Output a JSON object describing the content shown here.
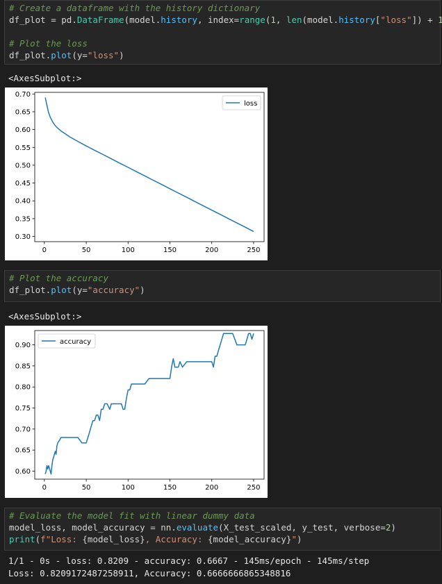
{
  "cells": [
    {
      "lines": [
        [
          {
            "t": "# Create a dataframe with the history dictionary",
            "c": "cm"
          }
        ],
        [
          {
            "t": "df_plot = pd.",
            "c": "op"
          },
          {
            "t": "DataFrame",
            "c": "bi"
          },
          {
            "t": "(model.",
            "c": "op"
          },
          {
            "t": "history",
            "c": "fn"
          },
          {
            "t": ", index=",
            "c": "op"
          },
          {
            "t": "range",
            "c": "bi"
          },
          {
            "t": "(",
            "c": "op"
          },
          {
            "t": "1",
            "c": "num"
          },
          {
            "t": ", ",
            "c": "op"
          },
          {
            "t": "len",
            "c": "bi"
          },
          {
            "t": "(model.",
            "c": "op"
          },
          {
            "t": "history",
            "c": "fn"
          },
          {
            "t": "[",
            "c": "op"
          },
          {
            "t": "\"loss\"",
            "c": "str"
          },
          {
            "t": "]) + ",
            "c": "op"
          },
          {
            "t": "1",
            "c": "num"
          },
          {
            "t": "))",
            "c": "op"
          }
        ],
        [
          {
            "t": "",
            "c": "op"
          }
        ],
        [
          {
            "t": "# Plot the loss",
            "c": "cm"
          }
        ],
        [
          {
            "t": "df_plot.",
            "c": "op"
          },
          {
            "t": "plot",
            "c": "fn"
          },
          {
            "t": "(y=",
            "c": "op"
          },
          {
            "t": "\"loss\"",
            "c": "str"
          },
          {
            "t": ")",
            "c": "op"
          }
        ]
      ]
    },
    {
      "lines": [
        [
          {
            "t": "# Plot the accuracy",
            "c": "cm"
          }
        ],
        [
          {
            "t": "df_plot.",
            "c": "op"
          },
          {
            "t": "plot",
            "c": "fn"
          },
          {
            "t": "(y=",
            "c": "op"
          },
          {
            "t": "\"accuracy\"",
            "c": "str"
          },
          {
            "t": ")",
            "c": "op"
          }
        ]
      ]
    },
    {
      "lines": [
        [
          {
            "t": "# Evaluate the model fit with linear dummy data",
            "c": "cm"
          }
        ],
        [
          {
            "t": "model_loss, model_accuracy = nn.",
            "c": "op"
          },
          {
            "t": "evaluate",
            "c": "fn"
          },
          {
            "t": "(X_test_scaled, y_test, verbose=",
            "c": "op"
          },
          {
            "t": "2",
            "c": "num"
          },
          {
            "t": ")",
            "c": "op"
          }
        ],
        [
          {
            "t": "print",
            "c": "bi"
          },
          {
            "t": "(",
            "c": "op"
          },
          {
            "t": "f\"Loss: ",
            "c": "str"
          },
          {
            "t": "{model_loss}",
            "c": "op"
          },
          {
            "t": ", Accuracy: ",
            "c": "str"
          },
          {
            "t": "{model_accuracy}",
            "c": "op"
          },
          {
            "t": "\"",
            "c": "str"
          },
          {
            "t": ")",
            "c": "op"
          }
        ]
      ]
    }
  ],
  "outputs": {
    "axes1": "<AxesSubplot:>",
    "axes2": "<AxesSubplot:>",
    "eval_line1": "1/1 - 0s - loss: 0.8209 - accuracy: 0.6667 - 145ms/epoch - 145ms/step",
    "eval_line2": "Loss: 0.8209172487258911, Accuracy: 0.6666666865348816"
  },
  "chart_data": [
    {
      "type": "line",
      "legend": "loss",
      "legend_position": "top-right",
      "grid": false,
      "xlim": [
        -11.5,
        262.5
      ],
      "ylim": [
        0.2855,
        0.7045
      ],
      "xticks": [
        0,
        50,
        100,
        150,
        200,
        250
      ],
      "yticks": [
        0.3,
        0.35,
        0.4,
        0.45,
        0.5,
        0.55,
        0.6,
        0.65,
        0.7
      ],
      "ytick_labels": [
        "0.30",
        "0.35",
        "0.40",
        "0.45",
        "0.50",
        "0.55",
        "0.60",
        "0.65",
        "0.70"
      ],
      "color": "#1f77b4",
      "series": [
        {
          "name": "loss",
          "x": [
            1,
            3,
            5,
            7,
            10,
            13,
            16,
            20,
            25,
            30,
            40,
            50,
            60,
            70,
            80,
            90,
            100,
            110,
            120,
            130,
            140,
            150,
            160,
            170,
            180,
            190,
            200,
            210,
            220,
            230,
            240,
            250
          ],
          "values": [
            0.69,
            0.668,
            0.648,
            0.635,
            0.621,
            0.611,
            0.604,
            0.596,
            0.588,
            0.58,
            0.567,
            0.554,
            0.542,
            0.53,
            0.518,
            0.506,
            0.494,
            0.482,
            0.47,
            0.458,
            0.446,
            0.434,
            0.422,
            0.41,
            0.398,
            0.386,
            0.374,
            0.362,
            0.35,
            0.338,
            0.326,
            0.314
          ]
        }
      ]
    },
    {
      "type": "line",
      "legend": "accuracy",
      "legend_position": "top-left",
      "grid": false,
      "xlim": [
        -11.5,
        262.5
      ],
      "ylim": [
        0.581,
        0.934
      ],
      "xticks": [
        0,
        50,
        100,
        150,
        200,
        250
      ],
      "yticks": [
        0.6,
        0.65,
        0.7,
        0.75,
        0.8,
        0.85,
        0.9
      ],
      "ytick_labels": [
        "0.60",
        "0.65",
        "0.70",
        "0.75",
        "0.80",
        "0.85",
        "0.90"
      ],
      "color": "#1f77b4",
      "series": [
        {
          "name": "accuracy",
          "x": [
            1,
            2,
            3,
            4,
            5,
            6,
            7,
            8,
            9,
            10,
            11,
            12,
            13,
            14,
            15,
            16,
            18,
            20,
            22,
            25,
            28,
            30,
            35,
            40,
            45,
            50,
            52,
            54,
            56,
            58,
            60,
            62,
            64,
            66,
            68,
            70,
            72,
            75,
            78,
            80,
            85,
            90,
            92,
            94,
            96,
            98,
            100,
            102,
            104,
            110,
            115,
            120,
            125,
            130,
            135,
            140,
            145,
            150,
            152,
            154,
            156,
            158,
            160,
            162,
            165,
            170,
            175,
            180,
            185,
            190,
            195,
            200,
            202,
            204,
            206,
            208,
            210,
            212,
            214,
            216,
            218,
            220,
            225,
            230,
            235,
            240,
            242,
            244,
            246,
            248,
            250
          ],
          "values": [
            0.593,
            0.6,
            0.613,
            0.605,
            0.613,
            0.607,
            0.6,
            0.593,
            0.613,
            0.627,
            0.633,
            0.64,
            0.647,
            0.64,
            0.66,
            0.667,
            0.673,
            0.68,
            0.68,
            0.68,
            0.68,
            0.68,
            0.68,
            0.68,
            0.667,
            0.667,
            0.68,
            0.693,
            0.707,
            0.72,
            0.72,
            0.733,
            0.733,
            0.72,
            0.747,
            0.747,
            0.76,
            0.76,
            0.747,
            0.76,
            0.76,
            0.76,
            0.76,
            0.747,
            0.747,
            0.773,
            0.793,
            0.793,
            0.807,
            0.807,
            0.807,
            0.807,
            0.82,
            0.82,
            0.82,
            0.82,
            0.82,
            0.82,
            0.847,
            0.867,
            0.847,
            0.847,
            0.847,
            0.86,
            0.847,
            0.86,
            0.86,
            0.86,
            0.86,
            0.86,
            0.86,
            0.86,
            0.847,
            0.873,
            0.873,
            0.887,
            0.9,
            0.913,
            0.927,
            0.927,
            0.927,
            0.927,
            0.927,
            0.9,
            0.9,
            0.9,
            0.913,
            0.927,
            0.927,
            0.913,
            0.927
          ]
        }
      ]
    }
  ]
}
